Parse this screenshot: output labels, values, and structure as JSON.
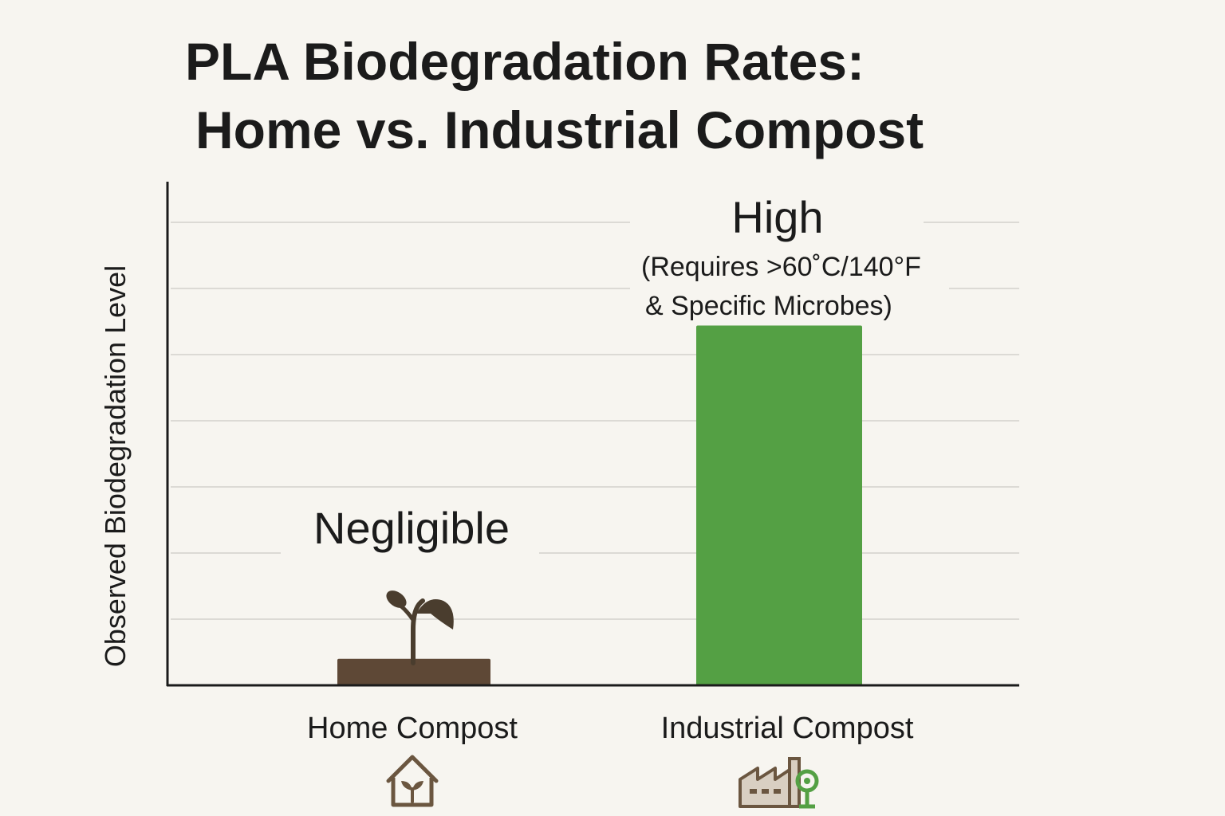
{
  "chart_data": {
    "type": "bar",
    "title_lines": [
      "PLA Biodegradation Rates:",
      "Home vs. Industrial Compost"
    ],
    "ylabel": "Observed Biodegradation Level",
    "xlabel": "",
    "categories": [
      "Home Compost",
      "Industrial Compost"
    ],
    "values": [
      0.05,
      0.68
    ],
    "ylim": [
      0,
      1
    ],
    "grid": true,
    "gridline_count": 7,
    "value_labels": [
      "Negligible",
      "High"
    ],
    "annotations": [
      {
        "category": "Industrial Compost",
        "lines": [
          "(Requires >60˚C/140°F",
          "& Specific Microbes)"
        ]
      }
    ],
    "category_icons": [
      "house-with-sprout-icon",
      "factory-with-leaf-icon"
    ],
    "colors": {
      "home_bar": "#5e4836",
      "industrial_bar": "#54a044",
      "sprout": "#4a3d2e",
      "grid": "#dcdad5",
      "axis": "#1b1b1b",
      "house_icon": "#6b5640",
      "factory_icon": "#8d7a66",
      "leaf_icon": "#54a044",
      "background": "#f7f5f0"
    }
  }
}
